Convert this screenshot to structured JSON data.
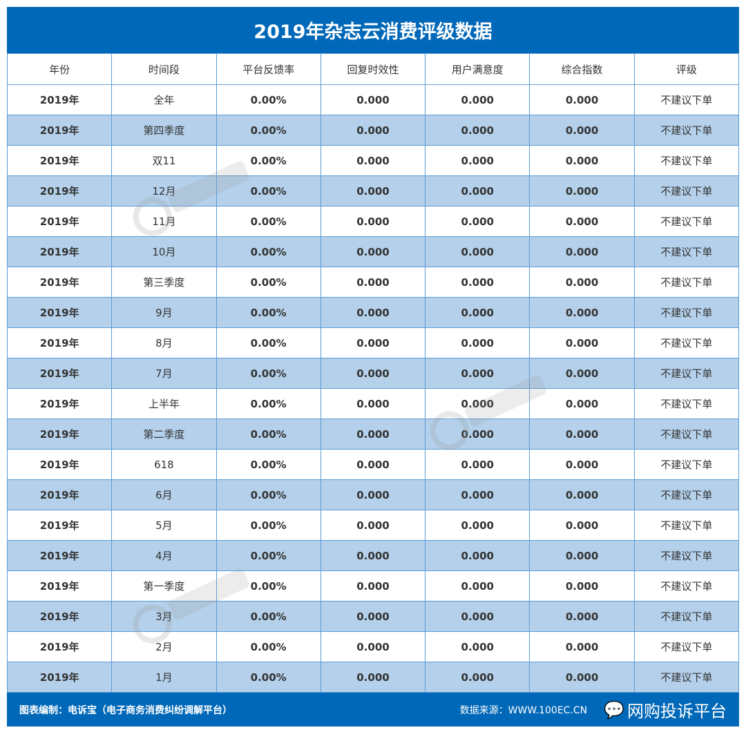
{
  "title": "2019年杂志云消费评级数据",
  "columns": [
    "年份",
    "时间段",
    "平台反馈率",
    "回复时效性",
    "用户满意度",
    "综合指数",
    "评级"
  ],
  "rows": [
    [
      "2019年",
      "全年",
      "0.00%",
      "0.000",
      "0.000",
      "0.000",
      "不建议下单"
    ],
    [
      "2019年",
      "第四季度",
      "0.00%",
      "0.000",
      "0.000",
      "0.000",
      "不建议下单"
    ],
    [
      "2019年",
      "双11",
      "0.00%",
      "0.000",
      "0.000",
      "0.000",
      "不建议下单"
    ],
    [
      "2019年",
      "12月",
      "0.00%",
      "0.000",
      "0.000",
      "0.000",
      "不建议下单"
    ],
    [
      "2019年",
      "11月",
      "0.00%",
      "0.000",
      "0.000",
      "0.000",
      "不建议下单"
    ],
    [
      "2019年",
      "10月",
      "0.00%",
      "0.000",
      "0.000",
      "0.000",
      "不建议下单"
    ],
    [
      "2019年",
      "第三季度",
      "0.00%",
      "0.000",
      "0.000",
      "0.000",
      "不建议下单"
    ],
    [
      "2019年",
      "9月",
      "0.00%",
      "0.000",
      "0.000",
      "0.000",
      "不建议下单"
    ],
    [
      "2019年",
      "8月",
      "0.00%",
      "0.000",
      "0.000",
      "0.000",
      "不建议下单"
    ],
    [
      "2019年",
      "7月",
      "0.00%",
      "0.000",
      "0.000",
      "0.000",
      "不建议下单"
    ],
    [
      "2019年",
      "上半年",
      "0.00%",
      "0.000",
      "0.000",
      "0.000",
      "不建议下单"
    ],
    [
      "2019年",
      "第二季度",
      "0.00%",
      "0.000",
      "0.000",
      "0.000",
      "不建议下单"
    ],
    [
      "2019年",
      "618",
      "0.00%",
      "0.000",
      "0.000",
      "0.000",
      "不建议下单"
    ],
    [
      "2019年",
      "6月",
      "0.00%",
      "0.000",
      "0.000",
      "0.000",
      "不建议下单"
    ],
    [
      "2019年",
      "5月",
      "0.00%",
      "0.000",
      "0.000",
      "0.000",
      "不建议下单"
    ],
    [
      "2019年",
      "4月",
      "0.00%",
      "0.000",
      "0.000",
      "0.000",
      "不建议下单"
    ],
    [
      "2019年",
      "第一季度",
      "0.00%",
      "0.000",
      "0.000",
      "0.000",
      "不建议下单"
    ],
    [
      "2019年",
      "3月",
      "0.00%",
      "0.000",
      "0.000",
      "0.000",
      "不建议下单"
    ],
    [
      "2019年",
      "2月",
      "0.00%",
      "0.000",
      "0.000",
      "0.000",
      "不建议下单"
    ],
    [
      "2019年",
      "1月",
      "0.00%",
      "0.000",
      "0.000",
      "0.000",
      "不建议下单"
    ]
  ],
  "footer": {
    "credit": "图表编制：电诉宝（电子商务消费纠纷调解平台）",
    "source": "数据来源：WWW.100EC.CN",
    "overlay": "网购投诉平台"
  },
  "watermark": "ebT电数宝"
}
